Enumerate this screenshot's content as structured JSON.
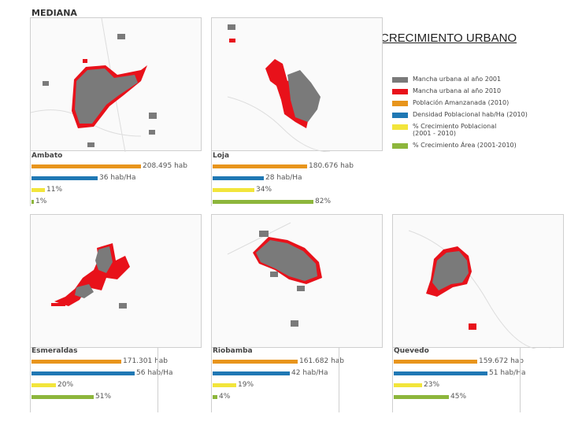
{
  "heading": "MEDIANA",
  "title": "CRECIMIENTO URBANO",
  "colors": {
    "mancha_2001": "#7a7a7a",
    "mancha_2010": "#e8111a",
    "poblacion": "#e8951c",
    "densidad": "#1f78b4",
    "crec_poblacional": "#f2e53b",
    "crec_area": "#8db63c"
  },
  "legend": [
    {
      "label": "Mancha urbana al año 2001",
      "color": "#7a7a7a"
    },
    {
      "label": "Mancha urbana al año 2010",
      "color": "#e8111a"
    },
    {
      "label": "Población Amanzanada (2010)",
      "color": "#e8951c"
    },
    {
      "label": "Densidad Poblacional hab/Ha (2010)",
      "color": "#1f78b4"
    },
    {
      "label": "% Crecimiento Poblacional",
      "label2": "(2001 - 2010)",
      "color": "#f2e53b"
    },
    {
      "label": "% Crecimiento Área (2001-2010)",
      "color": "#8db63c"
    }
  ],
  "cities": [
    {
      "name": "Ambato",
      "poblacion": "208.495 hab",
      "poblacion_value": 208495,
      "densidad": "36 hab/Ha",
      "densidad_value": 36,
      "crec_pob": "11%",
      "crec_pob_value": 11,
      "crec_area": "1%",
      "crec_area_value": 1
    },
    {
      "name": "Loja",
      "poblacion": "180.676 hab",
      "poblacion_value": 180676,
      "densidad": "28 hab/Ha",
      "densidad_value": 28,
      "crec_pob": "34%",
      "crec_pob_value": 34,
      "crec_area": "82%",
      "crec_area_value": 82
    },
    {
      "name": "Esmeraldas",
      "poblacion": "171.301 hab",
      "poblacion_value": 171301,
      "densidad": "56 hab/Ha",
      "densidad_value": 56,
      "crec_pob": "20%",
      "crec_pob_value": 20,
      "crec_area": "51%",
      "crec_area_value": 51
    },
    {
      "name": "Riobamba",
      "poblacion": "161.682 hab",
      "poblacion_value": 161682,
      "densidad": "42 hab/Ha",
      "densidad_value": 42,
      "crec_pob": "19%",
      "crec_pob_value": 19,
      "crec_area": "4%",
      "crec_area_value": 4
    },
    {
      "name": "Quevedo",
      "poblacion": "159.672 hab",
      "poblacion_value": 159672,
      "densidad": "51 hab/Ha",
      "densidad_value": 51,
      "crec_pob": "23%",
      "crec_pob_value": 23,
      "crec_area": "45%",
      "crec_area_value": 45
    }
  ]
}
